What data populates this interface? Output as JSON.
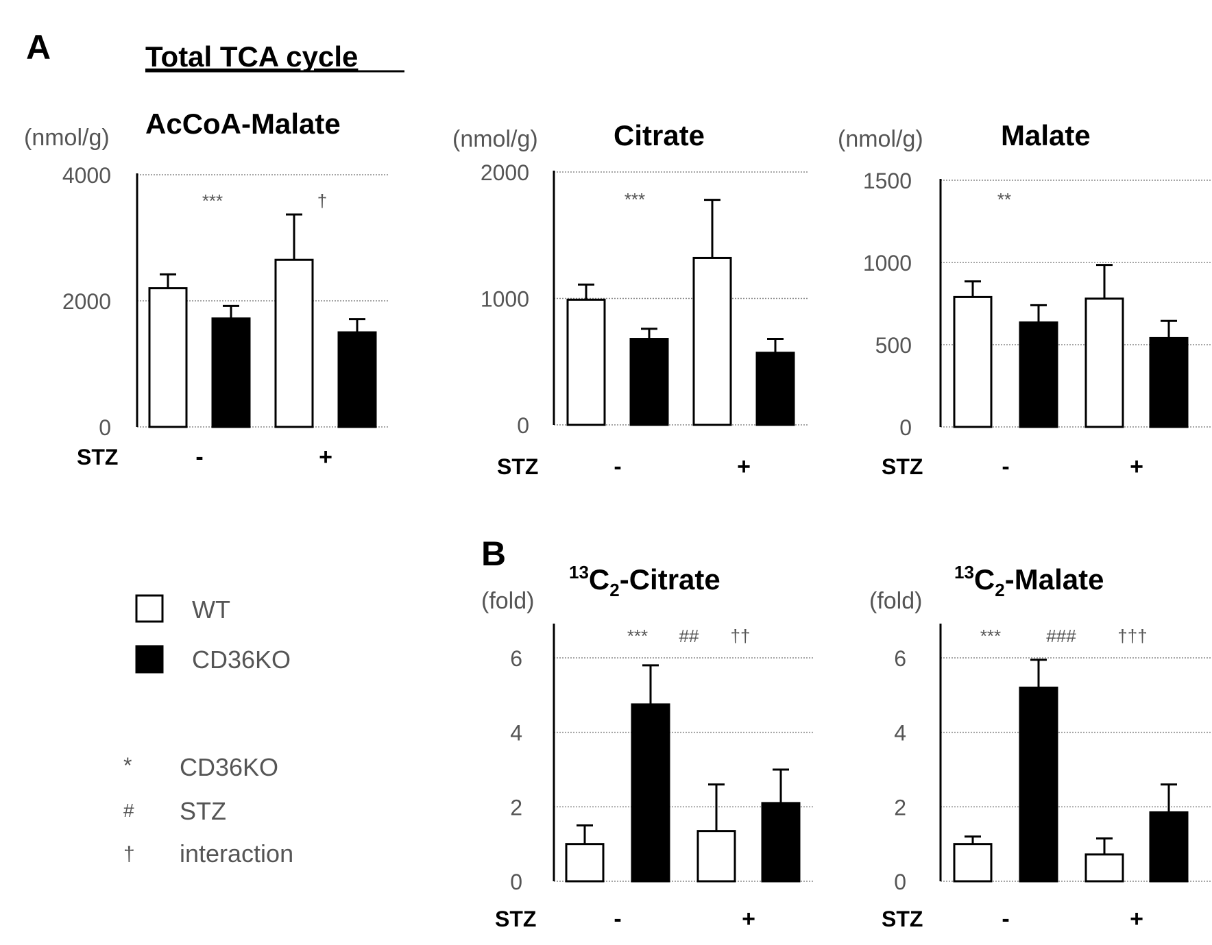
{
  "panel_a": {
    "letter": "A",
    "heading": "Total TCA cycle"
  },
  "panel_b": {
    "letter": "B"
  },
  "legend": {
    "groups": [
      {
        "label": "WT",
        "color": "#ffffff"
      },
      {
        "label": "CD36KO",
        "color": "#000000"
      }
    ],
    "symbols": [
      {
        "symbol": "*",
        "label": "CD36KO"
      },
      {
        "symbol": "#",
        "label": "STZ"
      },
      {
        "symbol": "†",
        "label": "interaction"
      }
    ]
  },
  "colors": {
    "wt_fill": "#ffffff",
    "ko_fill": "#000000",
    "stroke": "#000000",
    "grid": "#888888"
  },
  "chart_data": [
    {
      "type": "bar",
      "title": "AcCoA-Malate",
      "title_sup": "",
      "title_sub": "",
      "ylabel": "(nmol/g)",
      "ylim": [
        0,
        4000
      ],
      "yticks": [
        "0",
        "2000",
        "4000"
      ],
      "stz_label": "STZ",
      "categories": [
        "-",
        "+"
      ],
      "series": [
        {
          "name": "WT",
          "values": [
            2200,
            2650
          ],
          "errors": [
            220,
            720
          ]
        },
        {
          "name": "CD36KO",
          "values": [
            1720,
            1500
          ],
          "errors": [
            200,
            210
          ]
        }
      ],
      "annotations": [
        "***",
        "†"
      ]
    },
    {
      "type": "bar",
      "title": "Citrate",
      "title_sup": "",
      "title_sub": "",
      "ylabel": "(nmol/g)",
      "ylim": [
        0,
        2000
      ],
      "yticks": [
        "0",
        "1000",
        "2000"
      ],
      "stz_label": "STZ",
      "categories": [
        "-",
        "+"
      ],
      "series": [
        {
          "name": "WT",
          "values": [
            990,
            1320
          ],
          "errors": [
            120,
            460
          ]
        },
        {
          "name": "CD36KO",
          "values": [
            680,
            570
          ],
          "errors": [
            80,
            110
          ]
        }
      ],
      "annotations": [
        "***"
      ]
    },
    {
      "type": "bar",
      "title": "Malate",
      "title_sup": "",
      "title_sub": "",
      "ylabel": "(nmol/g)",
      "ylim": [
        0,
        1500
      ],
      "yticks": [
        "0",
        "500",
        "1000",
        "1500"
      ],
      "stz_label": "STZ",
      "categories": [
        "-",
        "+"
      ],
      "series": [
        {
          "name": "WT",
          "values": [
            790,
            780
          ],
          "errors": [
            95,
            205
          ]
        },
        {
          "name": "CD36KO",
          "values": [
            635,
            540
          ],
          "errors": [
            105,
            105
          ]
        }
      ],
      "annotations": [
        "**"
      ]
    },
    {
      "type": "bar",
      "title": "-Citrate",
      "title_sup": "13",
      "title_sub": "2",
      "title_base": "C",
      "ylabel": "(fold)",
      "ylim": [
        0,
        7
      ],
      "yticks": [
        "0",
        "2",
        "4",
        "6"
      ],
      "gridlines": [
        2,
        4,
        6
      ],
      "stz_label": "STZ",
      "categories": [
        "-",
        "+"
      ],
      "series": [
        {
          "name": "WT",
          "values": [
            1.0,
            1.35
          ],
          "errors": [
            0.5,
            1.25
          ]
        },
        {
          "name": "CD36KO",
          "values": [
            4.75,
            2.1
          ],
          "errors": [
            1.05,
            0.9
          ]
        }
      ],
      "annotations": [
        "***",
        "##",
        "††"
      ]
    },
    {
      "type": "bar",
      "title": "-Malate",
      "title_sup": "13",
      "title_sub": "2",
      "title_base": "C",
      "ylabel": "(fold)",
      "ylim": [
        0,
        7
      ],
      "yticks": [
        "0",
        "2",
        "4",
        "6"
      ],
      "gridlines": [
        2,
        4,
        6
      ],
      "stz_label": "STZ",
      "categories": [
        "-",
        "+"
      ],
      "series": [
        {
          "name": "WT",
          "values": [
            1.0,
            0.72
          ],
          "errors": [
            0.2,
            0.43
          ]
        },
        {
          "name": "CD36KO",
          "values": [
            5.2,
            1.85
          ],
          "errors": [
            0.75,
            0.75
          ]
        }
      ],
      "annotations": [
        "***",
        "###",
        "†††"
      ]
    }
  ]
}
